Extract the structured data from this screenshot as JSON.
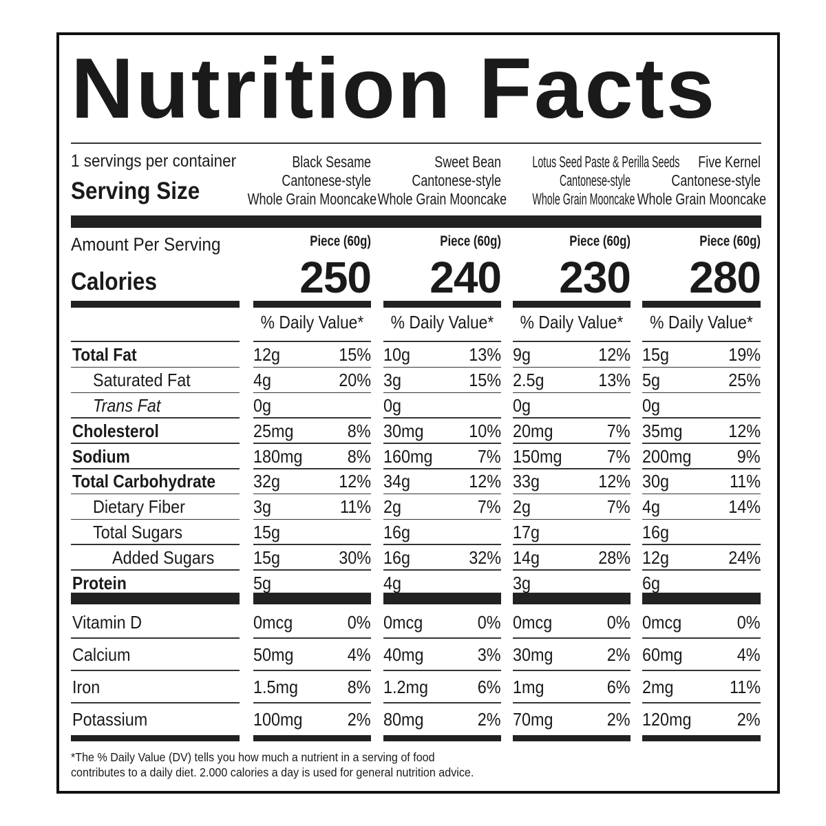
{
  "title": "Nutrition Facts",
  "servings_per_container": "1 servings per container",
  "serving_size_label": "Serving Size",
  "amount_per_serving_label": "Amount Per Serving",
  "calories_label": "Calories",
  "products": [
    {
      "name": [
        "Black Sesame",
        "Cantonese-style",
        "Whole Grain Mooncake"
      ],
      "serving": "Piece (60g)",
      "calories": "250",
      "dv_header": "% Daily Value*"
    },
    {
      "name": [
        "Sweet Bean",
        "Cantonese-style",
        "Whole Grain Mooncake"
      ],
      "serving": "Piece (60g)",
      "calories": "240",
      "dv_header": "% Daily Value*"
    },
    {
      "name": [
        "Lotus Seed Paste & Perilla Seeds",
        "Cantonese-style",
        "Whole Grain Mooncake"
      ],
      "serving": "Piece (60g)",
      "calories": "230",
      "dv_header": "% Daily Value*"
    },
    {
      "name": [
        "Five Kernel",
        "Cantonese-style",
        "Whole Grain Mooncake"
      ],
      "serving": "Piece (60g)",
      "calories": "280",
      "dv_header": "% Daily Value*"
    }
  ],
  "nutrients": [
    {
      "label": "Total Fat",
      "style": "bold",
      "values": [
        [
          "12g",
          "15%"
        ],
        [
          "10g",
          "13%"
        ],
        [
          "9g",
          "12%"
        ],
        [
          "15g",
          "19%"
        ]
      ]
    },
    {
      "label": "Saturated Fat",
      "style": "indent",
      "values": [
        [
          "4g",
          "20%"
        ],
        [
          "3g",
          "15%"
        ],
        [
          "2.5g",
          "13%"
        ],
        [
          "5g",
          "25%"
        ]
      ]
    },
    {
      "label": "Trans Fat",
      "style": "italic",
      "values": [
        [
          "0g",
          ""
        ],
        [
          "0g",
          ""
        ],
        [
          "0g",
          ""
        ],
        [
          "0g",
          ""
        ]
      ]
    },
    {
      "label": "Cholesterol",
      "style": "bold",
      "values": [
        [
          "25mg",
          "8%"
        ],
        [
          "30mg",
          "10%"
        ],
        [
          "20mg",
          "7%"
        ],
        [
          "35mg",
          "12%"
        ]
      ]
    },
    {
      "label": "Sodium",
      "style": "bold",
      "values": [
        [
          "180mg",
          "8%"
        ],
        [
          "160mg",
          "7%"
        ],
        [
          "150mg",
          "7%"
        ],
        [
          "200mg",
          "9%"
        ]
      ]
    },
    {
      "label": "Total Carbohydrate",
      "style": "bold",
      "values": [
        [
          "32g",
          "12%"
        ],
        [
          "34g",
          "12%"
        ],
        [
          "33g",
          "12%"
        ],
        [
          "30g",
          "11%"
        ]
      ]
    },
    {
      "label": "Dietary Fiber",
      "style": "indent",
      "values": [
        [
          "3g",
          "11%"
        ],
        [
          "2g",
          "7%"
        ],
        [
          "2g",
          "7%"
        ],
        [
          "4g",
          "14%"
        ]
      ]
    },
    {
      "label": "Total Sugars",
      "style": "indent",
      "values": [
        [
          "15g",
          ""
        ],
        [
          "16g",
          ""
        ],
        [
          "17g",
          ""
        ],
        [
          "16g",
          ""
        ]
      ]
    },
    {
      "label": "Added Sugars",
      "style": "indent2",
      "values": [
        [
          "15g",
          "30%"
        ],
        [
          "16g",
          "32%"
        ],
        [
          "14g",
          "28%"
        ],
        [
          "12g",
          "24%"
        ]
      ]
    },
    {
      "label": "Protein",
      "style": "bold",
      "values": [
        [
          "5g",
          ""
        ],
        [
          "4g",
          ""
        ],
        [
          "3g",
          ""
        ],
        [
          "6g",
          ""
        ]
      ]
    }
  ],
  "vitamins": [
    {
      "label": "Vitamin D",
      "values": [
        [
          "0mcg",
          "0%"
        ],
        [
          "0mcg",
          "0%"
        ],
        [
          "0mcg",
          "0%"
        ],
        [
          "0mcg",
          "0%"
        ]
      ]
    },
    {
      "label": "Calcium",
      "values": [
        [
          "50mg",
          "4%"
        ],
        [
          "40mg",
          "3%"
        ],
        [
          "30mg",
          "2%"
        ],
        [
          "60mg",
          "4%"
        ]
      ]
    },
    {
      "label": "Iron",
      "values": [
        [
          "1.5mg",
          "8%"
        ],
        [
          "1.2mg",
          "6%"
        ],
        [
          "1mg",
          "6%"
        ],
        [
          "2mg",
          "11%"
        ]
      ]
    },
    {
      "label": "Potassium",
      "values": [
        [
          "100mg",
          "2%"
        ],
        [
          "80mg",
          "2%"
        ],
        [
          "70mg",
          "2%"
        ],
        [
          "120mg",
          "2%"
        ]
      ]
    }
  ],
  "footnote": [
    "*The % Daily Value (DV) tells you how much a nutrient in a serving of food",
    "contributes to a daily diet. 2.000 calories a day is used for general nutrition advice."
  ]
}
